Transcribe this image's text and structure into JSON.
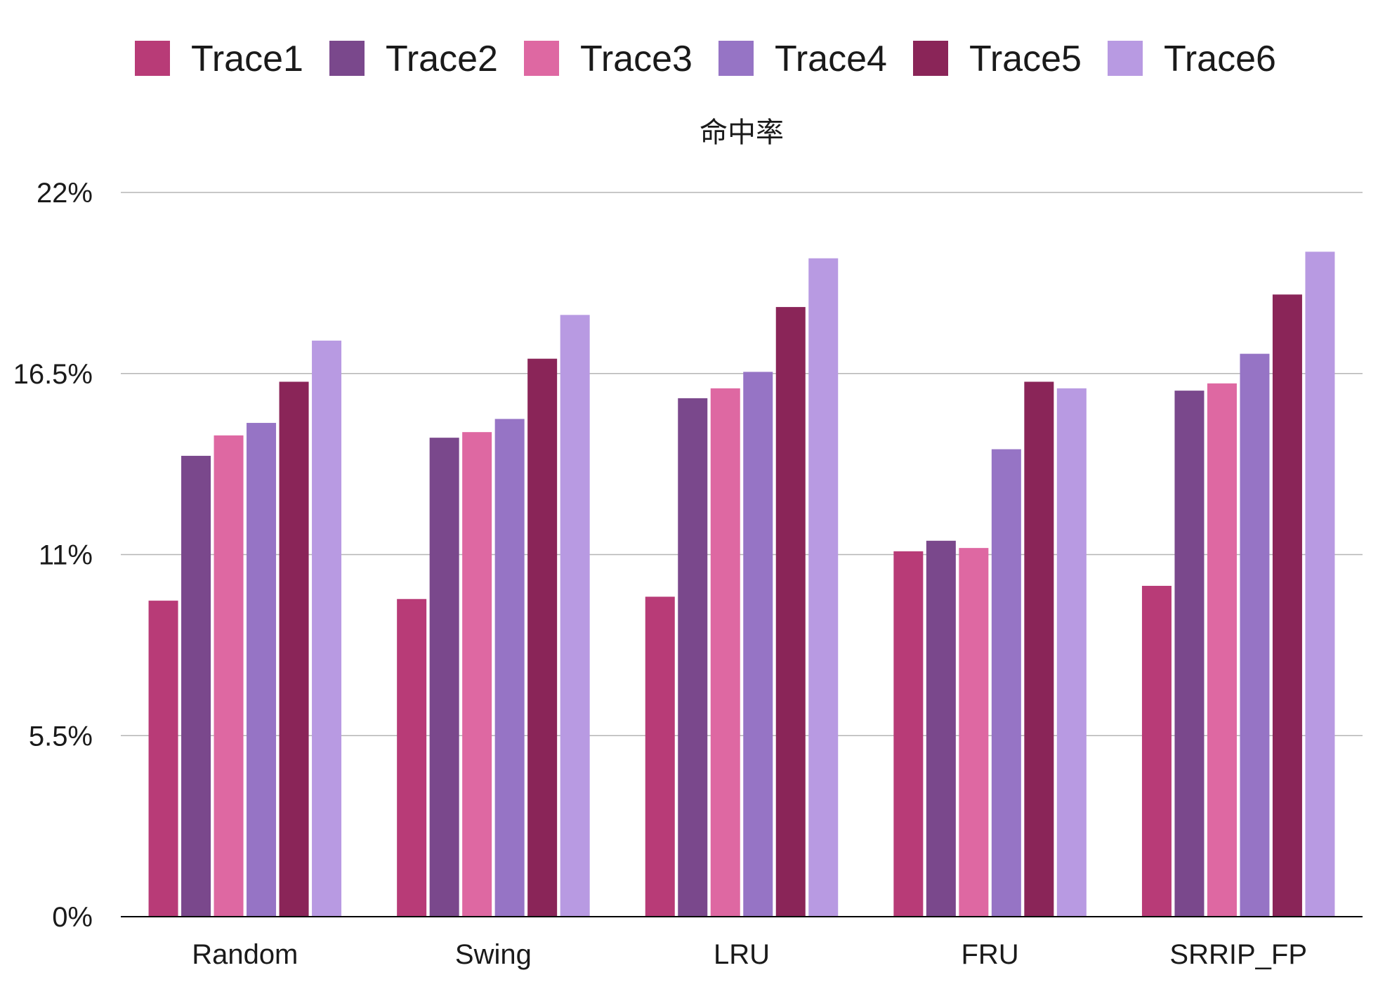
{
  "chart_data": {
    "type": "bar",
    "title": "命中率",
    "xlabel": "",
    "ylabel": "",
    "ylim": [
      0,
      22
    ],
    "yticks": [
      0,
      5.5,
      11,
      16.5,
      22
    ],
    "ytick_labels": [
      "0%",
      "5.5%",
      "11%",
      "16.5%",
      "22%"
    ],
    "grid": true,
    "legend_position": "top",
    "categories": [
      "Random",
      "Swing",
      "LRU",
      "FRU",
      "SRRIP_FP"
    ],
    "series": [
      {
        "name": "Trace1",
        "color": "#B83B77",
        "values": [
          9.6,
          9.65,
          9.72,
          11.1,
          10.05
        ]
      },
      {
        "name": "Trace2",
        "color": "#7A488C",
        "values": [
          14.0,
          14.55,
          15.75,
          11.42,
          15.98
        ]
      },
      {
        "name": "Trace3",
        "color": "#DE68A2",
        "values": [
          14.62,
          14.72,
          16.05,
          11.2,
          16.2
        ]
      },
      {
        "name": "Trace4",
        "color": "#9674C5",
        "values": [
          15.0,
          15.12,
          16.55,
          14.2,
          17.1
        ]
      },
      {
        "name": "Trace5",
        "color": "#8A2558",
        "values": [
          16.25,
          16.95,
          18.52,
          16.25,
          18.9
        ]
      },
      {
        "name": "Trace6",
        "color": "#B89AE2",
        "values": [
          17.5,
          18.28,
          20.0,
          16.05,
          20.2
        ]
      }
    ]
  }
}
